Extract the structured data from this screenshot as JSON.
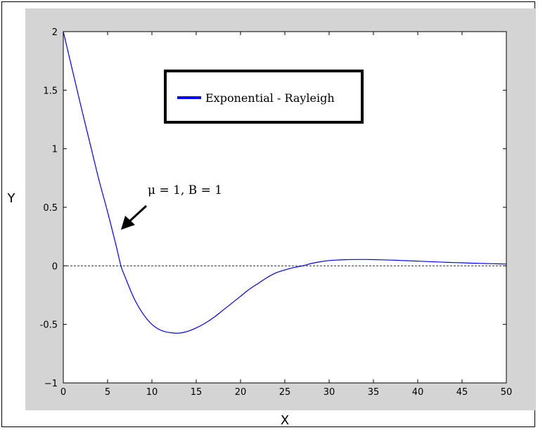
{
  "chart_data": {
    "type": "line",
    "title": "",
    "xlabel": "X",
    "ylabel": "Y",
    "xlim": [
      0,
      50
    ],
    "ylim": [
      -1,
      2
    ],
    "x_ticks": [
      0,
      5,
      10,
      15,
      20,
      25,
      30,
      35,
      40,
      45,
      50
    ],
    "y_ticks": [
      -1,
      -0.5,
      0,
      0.5,
      1,
      1.5,
      2
    ],
    "x_tick_labels": [
      "0",
      "5",
      "10",
      "15",
      "20",
      "25",
      "30",
      "35",
      "40",
      "45",
      "50"
    ],
    "y_tick_labels": [
      "−1",
      "-0.5",
      "0",
      "0.5",
      "1",
      "1.5",
      "2"
    ],
    "grid": false,
    "legend_position": "top-center",
    "reference_line": {
      "y": 0,
      "style": "dashed",
      "color": "#333333"
    },
    "series": [
      {
        "name": "Exponential - Rayleigh",
        "color": "#0000ff",
        "x": [
          0,
          1,
          2,
          3,
          4,
          5,
          6,
          6.5,
          7,
          8,
          9,
          10,
          11,
          12,
          13,
          14,
          15,
          16,
          17,
          18,
          19,
          20,
          21,
          22,
          23,
          24,
          25,
          26,
          27,
          28,
          29,
          30,
          31,
          32,
          33,
          34,
          35,
          36,
          37,
          38,
          39,
          40,
          41,
          42,
          43,
          44,
          45,
          46,
          47,
          48,
          49,
          50
        ],
        "y": [
          2.0,
          1.68,
          1.36,
          1.05,
          0.74,
          0.46,
          0.16,
          0.0,
          -0.1,
          -0.28,
          -0.41,
          -0.5,
          -0.55,
          -0.57,
          -0.575,
          -0.56,
          -0.53,
          -0.49,
          -0.44,
          -0.38,
          -0.32,
          -0.26,
          -0.2,
          -0.15,
          -0.1,
          -0.06,
          -0.035,
          -0.015,
          0.0,
          0.02,
          0.035,
          0.045,
          0.05,
          0.053,
          0.054,
          0.054,
          0.053,
          0.051,
          0.049,
          0.046,
          0.043,
          0.04,
          0.037,
          0.034,
          0.031,
          0.028,
          0.026,
          0.023,
          0.021,
          0.019,
          0.017,
          0.015
        ]
      }
    ],
    "annotations": [
      {
        "text": "μ = 1, B = 1",
        "arrow_to": [
          6.5,
          0.3
        ]
      }
    ],
    "background_color": "#d4d4d4"
  }
}
